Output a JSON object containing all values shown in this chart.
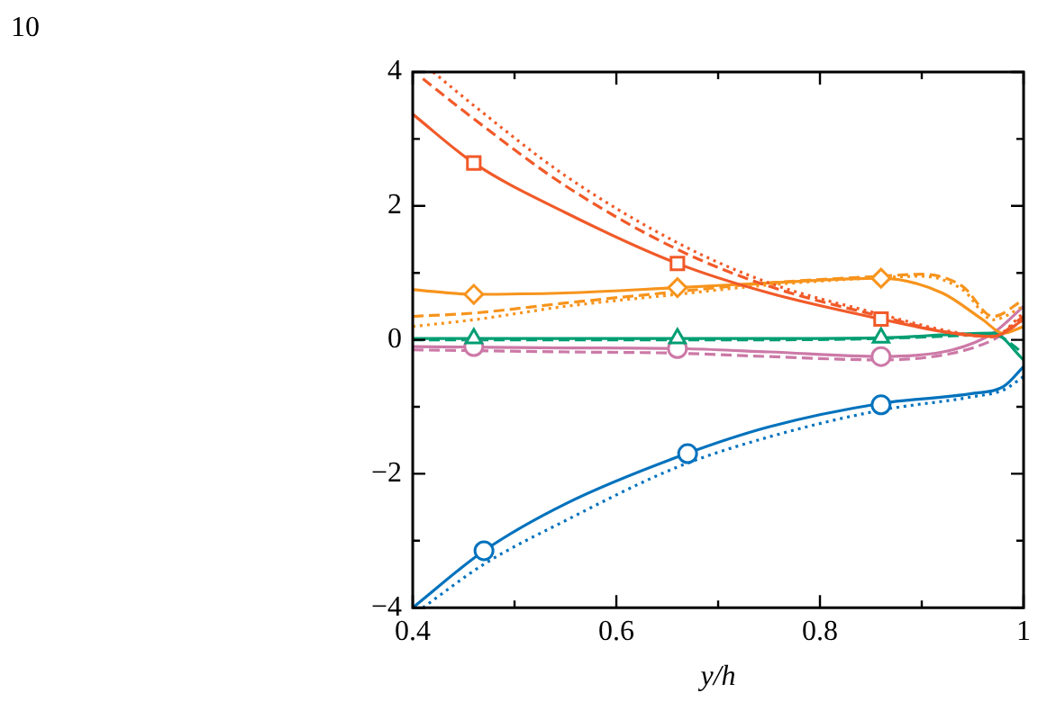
{
  "chart_data": {
    "type": "line",
    "xlabel": "y/h",
    "annotations": [
      "10"
    ],
    "grid": false,
    "legend": false,
    "xlim": [
      0.4,
      1.0
    ],
    "ylim": [
      -4,
      4
    ],
    "xticks": [
      0.4,
      {
        "value": 0.5,
        "label": null
      },
      0.6,
      {
        "value": 0.7,
        "label": null
      },
      0.8,
      {
        "value": 0.9,
        "label": null
      },
      {
        "value": 1.0,
        "label": "1"
      }
    ],
    "yticks": [
      {
        "value": -4,
        "label": "−4"
      },
      {
        "value": -3,
        "label": null
      },
      {
        "value": -2,
        "label": "−2"
      },
      {
        "value": -1,
        "label": null
      },
      0,
      {
        "value": 1,
        "label": null
      },
      2,
      {
        "value": 3,
        "label": null
      },
      4
    ],
    "series": [
      {
        "color": "#f15a29",
        "line_style": "solid",
        "marker": "none",
        "x": [
          0.4,
          0.46,
          0.55,
          0.66,
          0.75,
          0.86,
          0.93,
          0.97,
          1.0
        ],
        "values": [
          3.37,
          2.64,
          1.9,
          1.14,
          0.7,
          0.31,
          0.1,
          0.05,
          0.3
        ]
      },
      {
        "color": "#f15a29",
        "line_style": "dashed",
        "marker": "none",
        "x": [
          0.41,
          0.46,
          0.55,
          0.66,
          0.75,
          0.86,
          0.93,
          0.97,
          1.0
        ],
        "values": [
          3.9,
          3.3,
          2.3,
          1.35,
          0.8,
          0.35,
          0.1,
          0.05,
          0.35
        ]
      },
      {
        "color": "#f15a29",
        "line_style": "dotted",
        "marker": "none",
        "x": [
          0.42,
          0.46,
          0.55,
          0.66,
          0.75,
          0.86,
          0.93,
          0.97,
          1.0
        ],
        "values": [
          4.0,
          3.5,
          2.45,
          1.45,
          0.85,
          0.38,
          0.12,
          0.05,
          0.4
        ]
      },
      {
        "color": "#f15a29",
        "type": "scatter",
        "marker": "square",
        "x": [
          0.46,
          0.66,
          0.86
        ],
        "values": [
          2.64,
          1.14,
          0.31
        ]
      },
      {
        "color": "#f7941d",
        "line_style": "solid",
        "marker": "none",
        "x": [
          0.4,
          0.46,
          0.55,
          0.66,
          0.75,
          0.86,
          0.92,
          0.96,
          0.98,
          1.0
        ],
        "values": [
          0.75,
          0.68,
          0.7,
          0.78,
          0.85,
          0.92,
          0.7,
          0.3,
          0.1,
          0.2
        ]
      },
      {
        "color": "#f7941d",
        "line_style": "dashed",
        "marker": "none",
        "x": [
          0.4,
          0.46,
          0.55,
          0.66,
          0.75,
          0.86,
          0.9,
          0.94,
          0.97,
          1.0
        ],
        "values": [
          0.35,
          0.4,
          0.55,
          0.72,
          0.85,
          0.95,
          0.98,
          0.8,
          0.35,
          0.6
        ]
      },
      {
        "color": "#f7941d",
        "line_style": "dotted",
        "marker": "none",
        "x": [
          0.4,
          0.46,
          0.55,
          0.66,
          0.75,
          0.86,
          0.9,
          0.94,
          0.97,
          1.0
        ],
        "values": [
          0.2,
          0.3,
          0.5,
          0.68,
          0.82,
          0.93,
          0.95,
          0.75,
          0.3,
          0.5
        ]
      },
      {
        "color": "#f7941d",
        "type": "scatter",
        "marker": "diamond",
        "x": [
          0.46,
          0.66,
          0.86
        ],
        "values": [
          0.68,
          0.78,
          0.92
        ]
      },
      {
        "color": "#009e73",
        "line_style": "solid",
        "marker": "none",
        "x": [
          0.4,
          0.55,
          0.75,
          0.86,
          0.93,
          0.97,
          1.0
        ],
        "values": [
          0.02,
          0.02,
          0.02,
          0.03,
          0.08,
          0.1,
          -0.3
        ]
      },
      {
        "color": "#009e73",
        "line_style": "dashed",
        "marker": "none",
        "x": [
          0.4,
          0.55,
          0.75,
          0.86,
          0.93,
          0.97,
          1.0
        ],
        "values": [
          0.0,
          0.0,
          0.0,
          0.02,
          0.06,
          0.08,
          -0.2
        ]
      },
      {
        "color": "#009e73",
        "type": "scatter",
        "marker": "triangle",
        "x": [
          0.46,
          0.66,
          0.86
        ],
        "values": [
          0.02,
          0.02,
          0.03
        ]
      },
      {
        "color": "#cc79a7",
        "line_style": "solid",
        "marker": "none",
        "x": [
          0.4,
          0.55,
          0.66,
          0.75,
          0.86,
          0.93,
          0.97,
          1.0
        ],
        "values": [
          -0.1,
          -0.12,
          -0.13,
          -0.18,
          -0.25,
          -0.15,
          0.1,
          0.5
        ]
      },
      {
        "color": "#cc79a7",
        "line_style": "dashed",
        "marker": "none",
        "x": [
          0.4,
          0.55,
          0.66,
          0.75,
          0.86,
          0.93,
          0.97,
          1.0
        ],
        "values": [
          -0.15,
          -0.18,
          -0.2,
          -0.25,
          -0.3,
          -0.2,
          0.0,
          0.3
        ]
      },
      {
        "color": "#cc79a7",
        "type": "scatter",
        "marker": "circle",
        "x": [
          0.46,
          0.66,
          0.86
        ],
        "values": [
          -0.1,
          -0.13,
          -0.25
        ]
      },
      {
        "color": "#0072bd",
        "line_style": "solid",
        "marker": "none",
        "x": [
          0.4,
          0.47,
          0.55,
          0.66,
          0.75,
          0.86,
          0.95,
          0.98,
          1.0
        ],
        "values": [
          -4.0,
          -3.15,
          -2.45,
          -1.75,
          -1.3,
          -0.95,
          -0.8,
          -0.7,
          -0.4
        ]
      },
      {
        "color": "#0072bd",
        "line_style": "dotted",
        "marker": "none",
        "x": [
          0.41,
          0.47,
          0.55,
          0.66,
          0.75,
          0.86,
          0.95,
          0.98,
          1.0
        ],
        "values": [
          -4.0,
          -3.35,
          -2.7,
          -1.9,
          -1.45,
          -1.05,
          -0.85,
          -0.75,
          -0.55
        ]
      },
      {
        "color": "#0072bd",
        "type": "scatter",
        "marker": "circle",
        "x": [
          0.47,
          0.67,
          0.86
        ],
        "values": [
          -3.15,
          -1.7,
          -0.97
        ]
      }
    ]
  }
}
